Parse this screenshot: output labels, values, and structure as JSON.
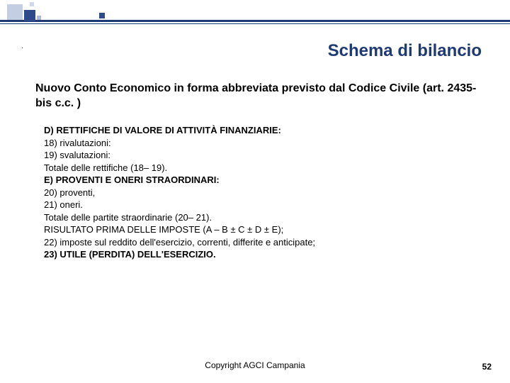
{
  "decoration": {
    "line_color": "#1f3a73",
    "squares": [
      {
        "cls": "sq1"
      },
      {
        "cls": "sq2"
      },
      {
        "cls": "sq3"
      },
      {
        "cls": "sq4"
      },
      {
        "cls": "sq5"
      }
    ]
  },
  "dot": ".",
  "title": "Schema di bilancio",
  "subtitle": "Nuovo Conto Economico in forma abbreviata previsto dal Codice Civile (art. 2435-bis c.c. )",
  "lines": [
    {
      "text": "D) RETTIFICHE DI VALORE DI ATTIVITÀ FINANZIARIE:",
      "bold": true
    },
    {
      "text": "18) rivalutazioni:",
      "bold": false
    },
    {
      "text": "19) svalutazioni:",
      "bold": false
    },
    {
      "text": "Totale delle rettifiche (18– 19).",
      "bold": false
    },
    {
      "text": "E) PROVENTI E ONERI STRAORDINARI:",
      "bold": true
    },
    {
      "text": "20) proventi,",
      "bold": false
    },
    {
      "text": "21) oneri.",
      "bold": false
    },
    {
      "text": "Totale delle partite straordinarie (20– 21).",
      "bold": false
    },
    {
      "text": "RISULTATO PRIMA DELLE IMPOSTE (A – B ± C ± D ± E);",
      "bold": false
    },
    {
      "text": "22) imposte sul reddito dell'esercizio, correnti, differite e anticipate;",
      "bold": false
    },
    {
      "text": "23) UTILE (PERDITA) DELL'ESERCIZIO.",
      "bold": true
    }
  ],
  "footer": "Copyright AGCI Campania",
  "pagenum": "52",
  "colors": {
    "title_color": "#1f3a73",
    "text_color": "#000000",
    "background": "#ffffff"
  },
  "fonts": {
    "family": "Arial",
    "title_size_pt": 24,
    "subtitle_size_pt": 16,
    "body_size_pt": 13,
    "footer_size_pt": 12
  }
}
